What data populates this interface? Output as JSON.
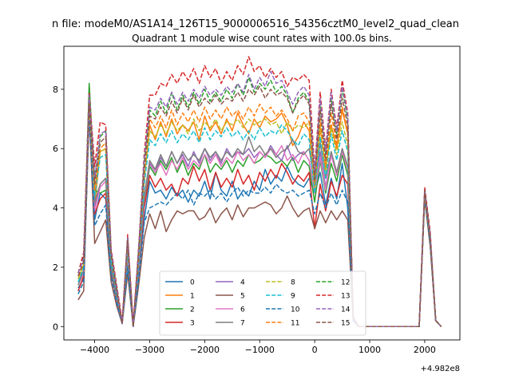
{
  "figure": {
    "suptitle": "n file: modeM0/AS1A14_126T15_9000006516_54356cztM0_level2_quad_clean",
    "offset_label": "+4.982e8"
  },
  "chart_data": {
    "type": "line",
    "title": "Quadrant 1 module wise count rates with 100.0s bins.",
    "xlabel": "",
    "ylabel": "",
    "x_offset": 498200000,
    "xlim": [
      -4560,
      2640
    ],
    "ylim": [
      -0.45,
      9.45
    ],
    "xticks": [
      -4000,
      -3000,
      -2000,
      -1000,
      0,
      1000,
      2000
    ],
    "xtick_labels": [
      "−4000",
      "−3000",
      "−2000",
      "−1000",
      "0",
      "1000",
      "2000"
    ],
    "yticks": [
      0,
      2,
      4,
      6,
      8
    ],
    "ytick_labels": [
      "0",
      "2",
      "4",
      "6",
      "8"
    ],
    "grid": false,
    "legend_position": "lower center, 4 columns",
    "x": [
      -4300,
      -4200,
      -4100,
      -4000,
      -3900,
      -3800,
      -3700,
      -3600,
      -3500,
      -3400,
      -3300,
      -3200,
      -3100,
      -3000,
      -2900,
      -2800,
      -2700,
      -2600,
      -2500,
      -2400,
      -2300,
      -2200,
      -2100,
      -2000,
      -1900,
      -1800,
      -1700,
      -1600,
      -1500,
      -1400,
      -1300,
      -1200,
      -1100,
      -1000,
      -900,
      -800,
      -700,
      -600,
      -500,
      -400,
      -300,
      -200,
      -100,
      0,
      100,
      200,
      300,
      400,
      500,
      600,
      700,
      800,
      900,
      1000,
      1100,
      1200,
      1300,
      1400,
      1500,
      1600,
      1700,
      1800,
      1900,
      2000,
      2100,
      2200,
      2300
    ],
    "series": [
      {
        "name": "0",
        "color": "#1f77b4",
        "dash": false,
        "values": [
          1.3,
          1.6,
          7.3,
          3.6,
          4.5,
          4.3,
          1.8,
          0.9,
          0.1,
          2.2,
          0.0,
          1.8,
          3.6,
          4.9,
          4.5,
          4.6,
          4.3,
          4.7,
          4.4,
          4.6,
          4.2,
          4.6,
          4.4,
          4.9,
          4.3,
          5.2,
          4.6,
          4.4,
          4.9,
          4.3,
          4.6,
          4.4,
          4.9,
          4.6,
          5.3,
          4.8,
          5.1,
          4.9,
          5.4,
          5.0,
          4.8,
          4.7,
          5.0,
          4.5,
          5.2,
          4.1,
          5.0,
          4.3,
          5.5,
          4.0,
          0.2,
          0.0,
          0.0,
          0.0,
          0.0,
          0.0,
          0.0,
          0.0,
          0.0,
          0.0,
          0.0,
          0.0,
          0.0,
          4.4,
          2.8,
          0.2,
          0.0
        ]
      },
      {
        "name": "1",
        "color": "#ff7f0e",
        "dash": false,
        "values": [
          1.6,
          2.1,
          7.4,
          4.1,
          5.9,
          6.0,
          2.2,
          1.1,
          0.1,
          2.6,
          0.0,
          2.3,
          4.9,
          6.8,
          6.3,
          6.9,
          6.4,
          7.0,
          6.5,
          6.8,
          6.6,
          6.9,
          6.3,
          7.1,
          6.6,
          6.9,
          6.5,
          7.0,
          6.6,
          7.2,
          6.8,
          6.5,
          7.0,
          6.7,
          7.1,
          6.9,
          7.0,
          7.2,
          6.8,
          6.1,
          6.4,
          6.9,
          6.6,
          4.6,
          6.7,
          5.3,
          6.8,
          6.0,
          7.3,
          6.5,
          0.3,
          0.0,
          0.0,
          0.0,
          0.0,
          0.0,
          0.0,
          0.0,
          0.0,
          0.0,
          0.0,
          0.0,
          0.0,
          4.4,
          2.9,
          0.2,
          0.0
        ]
      },
      {
        "name": "2",
        "color": "#2ca02c",
        "dash": false,
        "values": [
          1.4,
          1.8,
          8.2,
          4.6,
          4.5,
          4.6,
          2.0,
          1.0,
          0.1,
          2.4,
          0.0,
          2.0,
          4.2,
          5.4,
          5.1,
          5.6,
          5.3,
          5.7,
          5.2,
          5.6,
          5.1,
          5.5,
          5.3,
          5.8,
          5.2,
          5.5,
          5.3,
          5.6,
          5.2,
          5.6,
          5.4,
          5.8,
          5.5,
          5.6,
          5.8,
          5.7,
          5.5,
          5.6,
          5.4,
          5.7,
          5.2,
          5.6,
          5.4,
          4.2,
          5.6,
          4.5,
          5.5,
          4.9,
          5.8,
          5.1,
          0.2,
          0.0,
          0.0,
          0.0,
          0.0,
          0.0,
          0.0,
          0.0,
          0.0,
          0.0,
          0.0,
          0.0,
          0.0,
          4.4,
          2.9,
          0.2,
          0.0
        ]
      },
      {
        "name": "3",
        "color": "#d62728",
        "dash": false,
        "values": [
          1.2,
          1.7,
          7.5,
          3.8,
          4.3,
          4.5,
          1.9,
          0.9,
          0.1,
          2.3,
          0.0,
          1.9,
          4.0,
          5.1,
          4.7,
          5.0,
          4.6,
          4.8,
          4.4,
          5.0,
          4.8,
          5.4,
          4.9,
          5.3,
          4.6,
          5.2,
          4.7,
          5.0,
          4.7,
          5.3,
          4.8,
          5.1,
          4.6,
          5.2,
          4.9,
          5.3,
          5.0,
          5.5,
          5.2,
          4.8,
          5.1,
          4.9,
          5.2,
          3.3,
          4.8,
          3.9,
          4.9,
          4.4,
          5.1,
          4.8,
          0.2,
          0.0,
          0.0,
          0.0,
          0.0,
          0.0,
          0.0,
          0.0,
          0.0,
          0.0,
          0.0,
          0.0,
          0.0,
          4.4,
          2.8,
          0.2,
          0.0
        ]
      },
      {
        "name": "4",
        "color": "#9467bd",
        "dash": false,
        "values": [
          1.5,
          1.9,
          7.0,
          4.0,
          4.8,
          5.0,
          2.0,
          1.0,
          0.1,
          2.4,
          0.0,
          2.1,
          4.3,
          5.5,
          5.2,
          5.7,
          5.4,
          5.9,
          5.5,
          5.8,
          5.4,
          5.9,
          5.5,
          6.0,
          5.6,
          5.9,
          5.5,
          6.0,
          5.7,
          5.9,
          5.8,
          6.0,
          5.7,
          5.9,
          5.7,
          6.1,
          5.8,
          5.6,
          6.1,
          5.6,
          5.8,
          5.9,
          5.6,
          4.6,
          5.9,
          4.7,
          5.8,
          5.1,
          6.0,
          5.4,
          0.3,
          0.0,
          0.0,
          0.0,
          0.0,
          0.0,
          0.0,
          0.0,
          0.0,
          0.0,
          0.0,
          0.0,
          0.0,
          4.6,
          3.0,
          0.2,
          0.0
        ]
      },
      {
        "name": "5",
        "color": "#8c564b",
        "dash": false,
        "values": [
          0.9,
          1.2,
          7.2,
          2.8,
          3.2,
          3.6,
          1.5,
          0.7,
          0.1,
          1.8,
          0.0,
          1.4,
          3.0,
          3.8,
          3.3,
          3.9,
          3.2,
          3.6,
          3.9,
          3.8,
          3.9,
          3.9,
          3.6,
          3.7,
          4.0,
          3.5,
          3.8,
          4.0,
          3.6,
          4.1,
          3.7,
          4.0,
          4.0,
          4.1,
          4.2,
          4.1,
          3.8,
          4.0,
          4.4,
          4.0,
          3.7,
          3.9,
          4.0,
          3.3,
          3.9,
          3.5,
          3.9,
          3.6,
          3.9,
          3.6,
          0.2,
          0.0,
          0.0,
          0.0,
          0.0,
          0.0,
          0.0,
          0.0,
          0.0,
          0.0,
          0.0,
          0.0,
          0.0,
          4.3,
          2.7,
          0.2,
          0.0
        ]
      },
      {
        "name": "6",
        "color": "#e377c2",
        "dash": false,
        "values": [
          1.4,
          1.8,
          7.3,
          3.9,
          4.7,
          4.9,
          2.0,
          1.0,
          0.1,
          2.4,
          0.0,
          2.0,
          4.3,
          5.6,
          5.2,
          5.5,
          5.1,
          5.6,
          5.3,
          5.7,
          5.3,
          5.6,
          5.4,
          5.8,
          5.5,
          5.8,
          5.4,
          5.7,
          5.5,
          5.9,
          5.6,
          5.8,
          5.5,
          5.9,
          5.7,
          6.0,
          5.8,
          6.1,
          5.6,
          5.8,
          5.5,
          5.9,
          5.6,
          4.5,
          5.7,
          4.6,
          5.8,
          5.1,
          5.9,
          5.3,
          0.2,
          0.0,
          0.0,
          0.0,
          0.0,
          0.0,
          0.0,
          0.0,
          0.0,
          0.0,
          0.0,
          0.0,
          0.0,
          4.5,
          2.9,
          0.2,
          0.0
        ]
      },
      {
        "name": "7",
        "color": "#7f7f7f",
        "dash": false,
        "values": [
          1.4,
          1.9,
          7.3,
          4.2,
          4.8,
          5.0,
          2.0,
          1.0,
          0.1,
          2.5,
          0.0,
          2.1,
          4.4,
          5.6,
          5.3,
          5.8,
          5.4,
          5.9,
          5.5,
          5.9,
          5.6,
          5.8,
          5.6,
          6.0,
          5.7,
          5.9,
          5.6,
          5.9,
          5.7,
          6.0,
          5.8,
          6.4,
          5.9,
          6.1,
          5.8,
          6.0,
          5.7,
          5.9,
          6.0,
          6.3,
          5.9,
          5.8,
          6.0,
          4.8,
          6.2,
          5.0,
          5.9,
          5.2,
          6.0,
          5.4,
          0.3,
          0.0,
          0.0,
          0.0,
          0.0,
          0.0,
          0.0,
          0.0,
          0.0,
          0.0,
          0.0,
          0.0,
          0.0,
          4.5,
          3.0,
          0.2,
          0.0
        ]
      },
      {
        "name": "8",
        "color": "#bcbd22",
        "dash": true,
        "values": [
          1.6,
          2.1,
          7.4,
          4.6,
          5.9,
          6.0,
          2.3,
          1.2,
          0.1,
          2.7,
          0.0,
          2.3,
          5.0,
          6.6,
          6.4,
          6.8,
          6.5,
          6.9,
          6.6,
          6.8,
          6.5,
          7.0,
          6.6,
          6.9,
          6.7,
          7.0,
          6.6,
          6.9,
          6.8,
          7.0,
          6.7,
          7.0,
          6.8,
          6.9,
          7.0,
          6.8,
          6.9,
          6.5,
          6.9,
          6.6,
          6.8,
          6.7,
          6.9,
          4.6,
          6.8,
          5.2,
          6.7,
          5.8,
          6.9,
          6.1,
          0.3,
          0.0,
          0.0,
          0.0,
          0.0,
          0.0,
          0.0,
          0.0,
          0.0,
          0.0,
          0.0,
          0.0,
          0.0,
          4.5,
          3.0,
          0.2,
          0.0
        ]
      },
      {
        "name": "9",
        "color": "#17becf",
        "dash": true,
        "values": [
          1.5,
          2.0,
          7.5,
          4.4,
          5.7,
          5.8,
          2.2,
          1.1,
          0.1,
          2.6,
          0.0,
          2.2,
          4.8,
          6.3,
          6.1,
          6.5,
          6.2,
          6.6,
          6.2,
          6.5,
          6.3,
          6.6,
          6.2,
          6.7,
          6.3,
          6.6,
          6.4,
          6.7,
          6.4,
          6.6,
          6.3,
          6.6,
          6.3,
          6.7,
          6.4,
          6.6,
          6.5,
          6.8,
          6.6,
          6.3,
          6.1,
          6.5,
          6.3,
          4.5,
          6.4,
          5.0,
          6.5,
          5.6,
          6.6,
          5.9,
          0.3,
          0.0,
          0.0,
          0.0,
          0.0,
          0.0,
          0.0,
          0.0,
          0.0,
          0.0,
          0.0,
          0.0,
          0.0,
          4.5,
          3.0,
          0.2,
          0.0
        ]
      },
      {
        "name": "10",
        "color": "#1f77b4",
        "dash": true,
        "values": [
          1.1,
          1.5,
          7.3,
          3.4,
          3.8,
          4.1,
          1.7,
          0.8,
          0.1,
          2.0,
          0.0,
          1.6,
          3.5,
          4.0,
          4.1,
          4.2,
          4.1,
          4.3,
          4.5,
          4.3,
          4.6,
          4.1,
          4.5,
          4.4,
          4.6,
          4.3,
          4.5,
          4.2,
          4.5,
          4.7,
          4.4,
          4.6,
          4.5,
          4.5,
          4.7,
          4.5,
          4.8,
          4.6,
          4.5,
          4.6,
          4.4,
          4.5,
          4.6,
          3.8,
          4.5,
          4.0,
          4.5,
          4.1,
          4.6,
          4.2,
          0.2,
          0.0,
          0.0,
          0.0,
          0.0,
          0.0,
          0.0,
          0.0,
          0.0,
          0.0,
          0.0,
          0.0,
          0.0,
          4.4,
          2.8,
          0.2,
          0.0
        ]
      },
      {
        "name": "11",
        "color": "#ff7f0e",
        "dash": true,
        "values": [
          1.7,
          2.2,
          7.6,
          4.6,
          6.0,
          6.2,
          2.4,
          1.2,
          0.1,
          2.8,
          0.0,
          2.4,
          5.2,
          7.0,
          6.7,
          7.1,
          6.7,
          7.3,
          6.8,
          7.2,
          6.9,
          7.3,
          6.9,
          7.4,
          7.0,
          7.3,
          7.0,
          7.4,
          7.1,
          7.3,
          7.0,
          7.4,
          7.1,
          7.5,
          7.2,
          7.4,
          7.1,
          7.3,
          7.0,
          6.6,
          7.1,
          7.2,
          6.9,
          4.8,
          7.0,
          5.4,
          7.2,
          6.1,
          7.4,
          6.6,
          0.3,
          0.0,
          0.0,
          0.0,
          0.0,
          0.0,
          0.0,
          0.0,
          0.0,
          0.0,
          0.0,
          0.0,
          0.0,
          4.5,
          3.0,
          0.2,
          0.0
        ]
      },
      {
        "name": "12",
        "color": "#2ca02c",
        "dash": true,
        "values": [
          1.8,
          2.4,
          8.1,
          5.0,
          6.4,
          6.6,
          2.5,
          1.3,
          0.1,
          3.0,
          0.0,
          2.6,
          5.5,
          7.3,
          7.1,
          7.6,
          7.2,
          7.9,
          7.3,
          7.8,
          7.4,
          7.9,
          7.5,
          8.0,
          7.6,
          7.9,
          7.6,
          8.0,
          7.7,
          8.2,
          7.8,
          8.4,
          7.9,
          8.2,
          8.0,
          8.3,
          7.9,
          8.1,
          7.8,
          7.2,
          7.7,
          7.9,
          7.6,
          5.1,
          7.5,
          5.8,
          7.7,
          6.5,
          8.0,
          7.0,
          0.3,
          0.0,
          0.0,
          0.0,
          0.0,
          0.0,
          0.0,
          0.0,
          0.0,
          0.0,
          0.0,
          0.0,
          0.0,
          4.6,
          3.1,
          0.2,
          0.0
        ]
      },
      {
        "name": "13",
        "color": "#d62728",
        "dash": true,
        "values": [
          1.8,
          2.5,
          7.9,
          5.4,
          6.9,
          6.8,
          2.6,
          1.4,
          0.2,
          3.1,
          0.1,
          2.7,
          5.8,
          7.8,
          7.8,
          8.2,
          8.1,
          8.5,
          8.2,
          8.6,
          8.3,
          8.7,
          8.2,
          8.8,
          8.4,
          8.7,
          8.2,
          8.6,
          8.3,
          8.8,
          8.5,
          9.1,
          8.6,
          8.8,
          8.4,
          8.7,
          8.4,
          8.6,
          8.1,
          8.4,
          8.3,
          8.5,
          8.3,
          5.3,
          7.9,
          6.0,
          8.0,
          6.7,
          8.3,
          7.2,
          0.3,
          0.0,
          0.0,
          0.0,
          0.0,
          0.0,
          0.0,
          0.0,
          0.0,
          0.0,
          0.0,
          0.0,
          0.0,
          4.7,
          3.2,
          0.2,
          0.0
        ]
      },
      {
        "name": "14",
        "color": "#9467bd",
        "dash": true,
        "values": [
          1.8,
          2.3,
          7.8,
          5.0,
          6.5,
          6.6,
          2.5,
          1.3,
          0.1,
          3.0,
          0.0,
          2.6,
          5.6,
          7.4,
          7.3,
          7.7,
          7.4,
          7.9,
          7.5,
          7.9,
          7.6,
          8.0,
          7.7,
          8.1,
          7.8,
          8.0,
          7.8,
          8.1,
          7.9,
          8.2,
          7.9,
          8.5,
          8.0,
          8.4,
          8.1,
          8.6,
          8.2,
          8.3,
          7.9,
          7.5,
          7.9,
          8.1,
          7.8,
          5.2,
          7.7,
          5.9,
          7.9,
          6.6,
          8.1,
          7.1,
          0.3,
          0.0,
          0.0,
          0.0,
          0.0,
          0.0,
          0.0,
          0.0,
          0.0,
          0.0,
          0.0,
          0.0,
          0.0,
          4.6,
          3.1,
          0.2,
          0.0
        ]
      },
      {
        "name": "15",
        "color": "#8c564b",
        "dash": true,
        "values": [
          1.7,
          2.2,
          7.5,
          4.8,
          6.2,
          6.4,
          2.4,
          1.2,
          0.1,
          2.9,
          0.0,
          2.5,
          5.3,
          7.1,
          7.0,
          7.4,
          7.1,
          7.6,
          7.2,
          7.7,
          7.3,
          7.8,
          7.4,
          7.7,
          7.5,
          7.8,
          7.5,
          7.7,
          7.6,
          7.9,
          7.6,
          8.0,
          7.8,
          8.1,
          7.7,
          8.0,
          7.8,
          7.9,
          7.7,
          7.2,
          7.6,
          7.8,
          7.5,
          4.9,
          7.3,
          5.6,
          7.5,
          6.3,
          7.7,
          6.8,
          0.3,
          0.0,
          0.0,
          0.0,
          0.0,
          0.0,
          0.0,
          0.0,
          0.0,
          0.0,
          0.0,
          0.0,
          0.0,
          4.6,
          3.0,
          0.2,
          0.0
        ]
      }
    ]
  }
}
